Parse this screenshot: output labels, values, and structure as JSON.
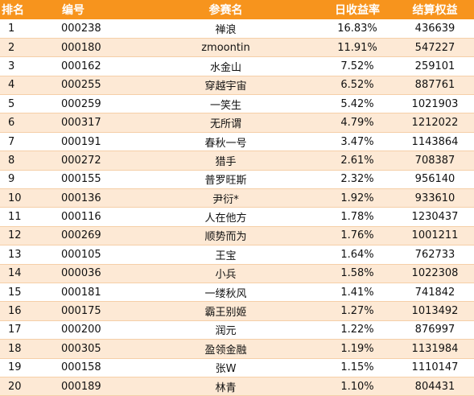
{
  "columns": [
    "排名",
    "编号",
    "参赛名",
    "日收益率",
    "结算权益"
  ],
  "rows": [
    [
      "1",
      "000238",
      "禅浪",
      "16.83%",
      "436639"
    ],
    [
      "2",
      "000180",
      "zmoontin",
      "11.91%",
      "547227"
    ],
    [
      "3",
      "000162",
      "水金山",
      "7.52%",
      "259101"
    ],
    [
      "4",
      "000255",
      "穿越宇宙",
      "6.52%",
      "887761"
    ],
    [
      "5",
      "000259",
      "一笑生",
      "5.42%",
      "1021903"
    ],
    [
      "6",
      "000317",
      "无所谓",
      "4.79%",
      "1212022"
    ],
    [
      "7",
      "000191",
      "春秋一号",
      "3.47%",
      "1143864"
    ],
    [
      "8",
      "000272",
      "猎手",
      "2.61%",
      "708387"
    ],
    [
      "9",
      "000155",
      "普罗旺斯",
      "2.32%",
      "956140"
    ],
    [
      "10",
      "000136",
      "尹衍*",
      "1.92%",
      "933610"
    ],
    [
      "11",
      "000116",
      "人在他方",
      "1.78%",
      "1230437"
    ],
    [
      "12",
      "000269",
      "顺势而为",
      "1.76%",
      "1001211"
    ],
    [
      "13",
      "000105",
      "王宝",
      "1.64%",
      "762733"
    ],
    [
      "14",
      "000036",
      "小兵",
      "1.58%",
      "1022308"
    ],
    [
      "15",
      "000181",
      "一缕秋风",
      "1.41%",
      "741842"
    ],
    [
      "16",
      "000175",
      "霸王别姬",
      "1.27%",
      "1013492"
    ],
    [
      "17",
      "000200",
      "润元",
      "1.22%",
      "876997"
    ],
    [
      "18",
      "000305",
      "盈领金融",
      "1.19%",
      "1131984"
    ],
    [
      "19",
      "000158",
      "张W",
      "1.15%",
      "1110147"
    ],
    [
      "20",
      "000189",
      "林青",
      "1.10%",
      "804431"
    ]
  ],
  "colors": {
    "header_bg": "#f7941d",
    "header_text": "#ffffff",
    "row_alt_bg": "#fde9d5",
    "row_bg": "#ffffff"
  }
}
